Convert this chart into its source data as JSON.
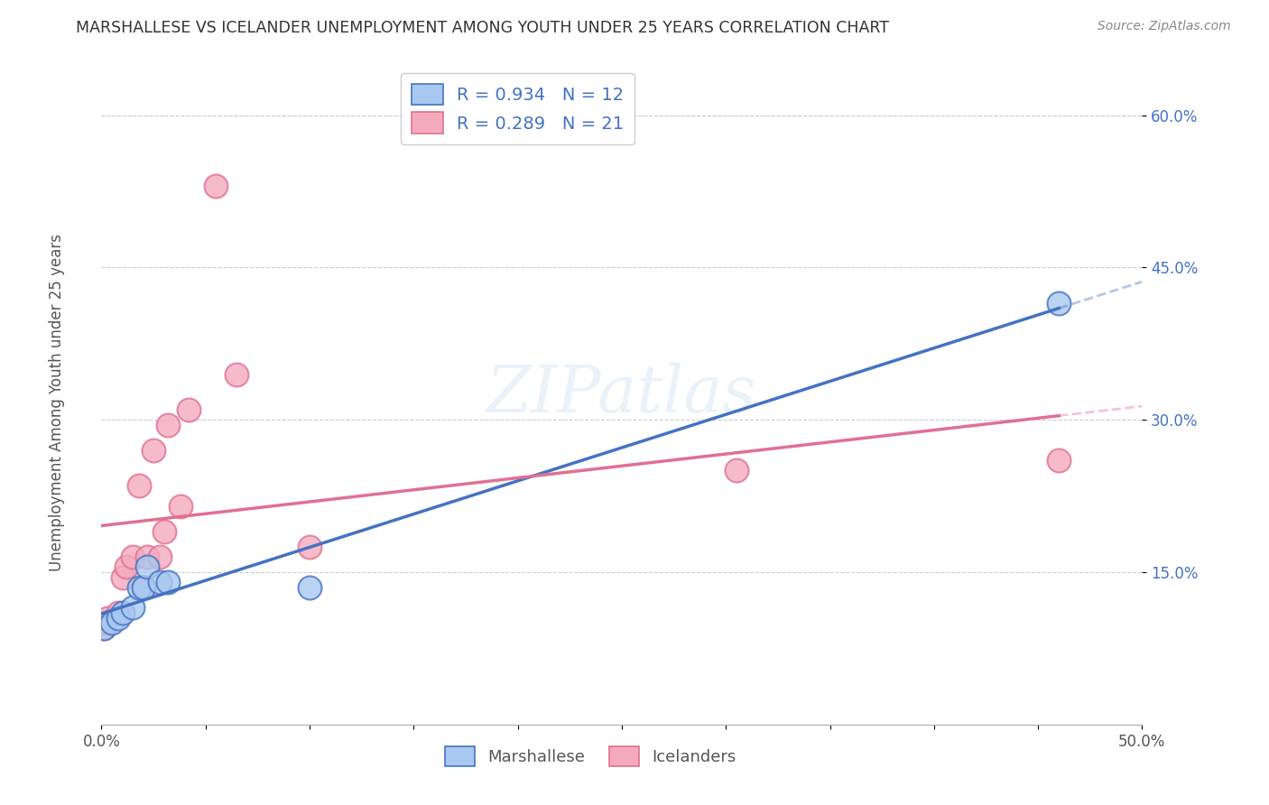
{
  "title": "MARSHALLESE VS ICELANDER UNEMPLOYMENT AMONG YOUTH UNDER 25 YEARS CORRELATION CHART",
  "source": "Source: ZipAtlas.com",
  "ylabel": "Unemployment Among Youth under 25 years",
  "xlim": [
    0.0,
    0.5
  ],
  "ylim": [
    0.0,
    0.65
  ],
  "xtick_positions": [
    0.0,
    0.05,
    0.1,
    0.15,
    0.2,
    0.25,
    0.3,
    0.35,
    0.4,
    0.45,
    0.5
  ],
  "xticklabels": [
    "0.0%",
    "",
    "",
    "",
    "",
    "",
    "",
    "",
    "",
    "",
    "50.0%"
  ],
  "ytick_positions": [
    0.15,
    0.3,
    0.45,
    0.6
  ],
  "ytick_labels": [
    "15.0%",
    "30.0%",
    "45.0%",
    "60.0%"
  ],
  "marshallese_x": [
    0.001,
    0.005,
    0.008,
    0.01,
    0.015,
    0.018,
    0.02,
    0.022,
    0.028,
    0.032,
    0.1,
    0.46
  ],
  "marshallese_y": [
    0.095,
    0.1,
    0.105,
    0.11,
    0.115,
    0.135,
    0.135,
    0.155,
    0.14,
    0.14,
    0.135,
    0.415
  ],
  "icelanders_x": [
    0.001,
    0.002,
    0.003,
    0.008,
    0.01,
    0.012,
    0.015,
    0.018,
    0.02,
    0.022,
    0.025,
    0.028,
    0.03,
    0.032,
    0.038,
    0.042,
    0.055,
    0.065,
    0.1,
    0.305,
    0.46
  ],
  "icelanders_y": [
    0.095,
    0.1,
    0.105,
    0.11,
    0.145,
    0.155,
    0.165,
    0.235,
    0.135,
    0.165,
    0.27,
    0.165,
    0.19,
    0.295,
    0.215,
    0.31,
    0.53,
    0.345,
    0.175,
    0.25,
    0.26
  ],
  "r_marshallese": 0.934,
  "n_marshallese": 12,
  "r_icelanders": 0.289,
  "n_icelanders": 21,
  "color_marshallese": "#A8C8F0",
  "color_icelanders": "#F4AABD",
  "line_color_marshallese": "#4472C4",
  "line_color_icelanders": "#E07090",
  "background_color": "#FFFFFF",
  "watermark": "ZIPatlas",
  "grid_color": "#CCCCCC"
}
